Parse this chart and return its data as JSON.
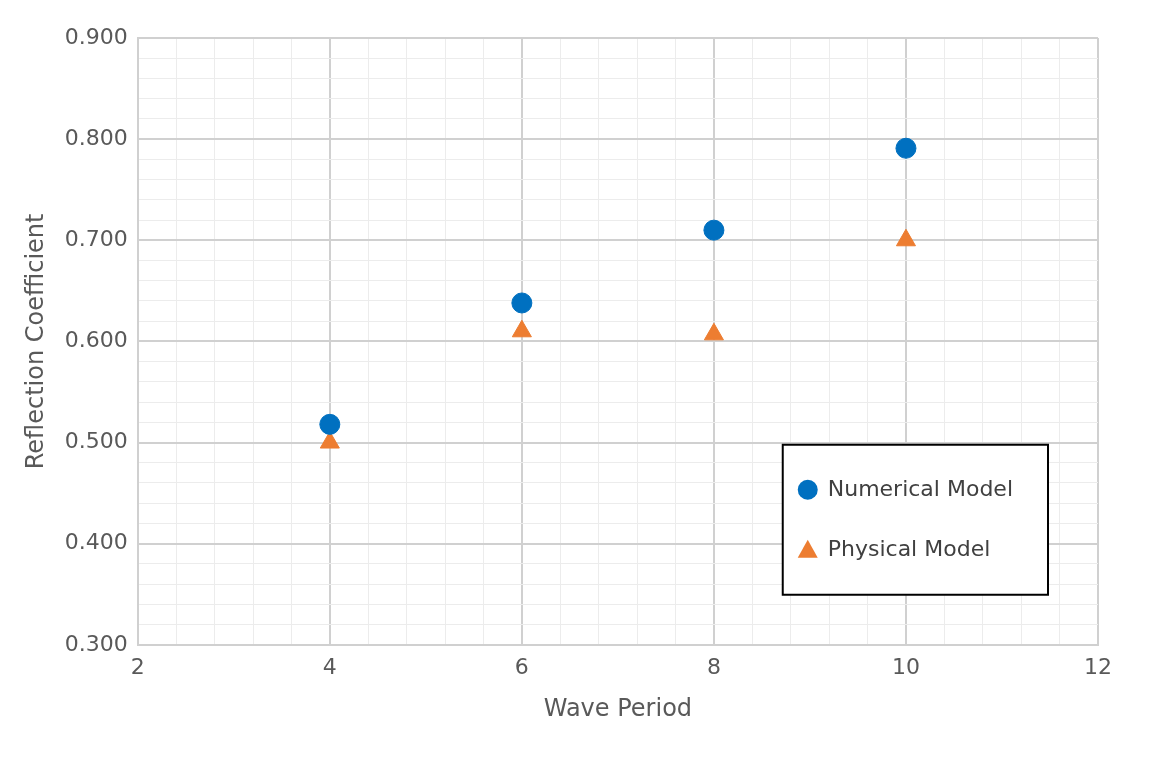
{
  "chart_data": {
    "type": "scatter",
    "xlabel": "Wave Period",
    "ylabel": "Reflection Coefficient",
    "xlim": [
      2,
      12
    ],
    "ylim": [
      0.3,
      0.9
    ],
    "xticks": [
      2,
      {
        "value": 2.4,
        "label": null
      },
      {
        "value": 2.8,
        "label": null
      },
      {
        "value": 3.2,
        "label": null
      },
      {
        "value": 3.6,
        "label": null
      },
      4,
      {
        "value": 4.4,
        "label": null
      },
      {
        "value": 4.8,
        "label": null
      },
      {
        "value": 5.2,
        "label": null
      },
      {
        "value": 5.6,
        "label": null
      },
      6,
      {
        "value": 6.4,
        "label": null
      },
      {
        "value": 6.8,
        "label": null
      },
      {
        "value": 7.2,
        "label": null
      },
      {
        "value": 7.6,
        "label": null
      },
      8,
      {
        "value": 8.4,
        "label": null
      },
      {
        "value": 8.8,
        "label": null
      },
      {
        "value": 9.2,
        "label": null
      },
      {
        "value": 9.6,
        "label": null
      },
      10,
      {
        "value": 10.4,
        "label": null
      },
      {
        "value": 10.8,
        "label": null
      },
      {
        "value": 11.2,
        "label": null
      },
      {
        "value": 11.6,
        "label": null
      },
      12
    ],
    "yticks": [
      {
        "value": 0.3,
        "label": "0.300"
      },
      {
        "value": 0.32,
        "label": null
      },
      {
        "value": 0.34,
        "label": null
      },
      {
        "value": 0.36,
        "label": null
      },
      {
        "value": 0.38,
        "label": null
      },
      {
        "value": 0.4,
        "label": "0.400"
      },
      {
        "value": 0.42,
        "label": null
      },
      {
        "value": 0.44,
        "label": null
      },
      {
        "value": 0.46,
        "label": null
      },
      {
        "value": 0.48,
        "label": null
      },
      {
        "value": 0.5,
        "label": "0.500"
      },
      {
        "value": 0.52,
        "label": null
      },
      {
        "value": 0.54,
        "label": null
      },
      {
        "value": 0.56,
        "label": null
      },
      {
        "value": 0.58,
        "label": null
      },
      {
        "value": 0.6,
        "label": "0.600"
      },
      {
        "value": 0.62,
        "label": null
      },
      {
        "value": 0.64,
        "label": null
      },
      {
        "value": 0.66,
        "label": null
      },
      {
        "value": 0.68,
        "label": null
      },
      {
        "value": 0.7,
        "label": "0.700"
      },
      {
        "value": 0.72,
        "label": null
      },
      {
        "value": 0.74,
        "label": null
      },
      {
        "value": 0.76,
        "label": null
      },
      {
        "value": 0.78,
        "label": null
      },
      {
        "value": 0.8,
        "label": "0.800"
      },
      {
        "value": 0.82,
        "label": null
      },
      {
        "value": 0.84,
        "label": null
      },
      {
        "value": 0.86,
        "label": null
      },
      {
        "value": 0.88,
        "label": null
      },
      {
        "value": 0.9,
        "label": "0.900"
      }
    ],
    "grid": true,
    "legend": "bottom right",
    "series": [
      {
        "name": "Numerical Model",
        "color": "#0070c0",
        "marker": "circle",
        "x": [
          4,
          6,
          8,
          10
        ],
        "values": [
          0.518,
          0.638,
          0.71,
          0.791
        ]
      },
      {
        "name": "Physical Model",
        "color": "#ed7d31",
        "marker": "triangle",
        "x": [
          4,
          6,
          8,
          10
        ],
        "values": [
          0.5,
          0.61,
          0.607,
          0.7
        ]
      }
    ]
  }
}
